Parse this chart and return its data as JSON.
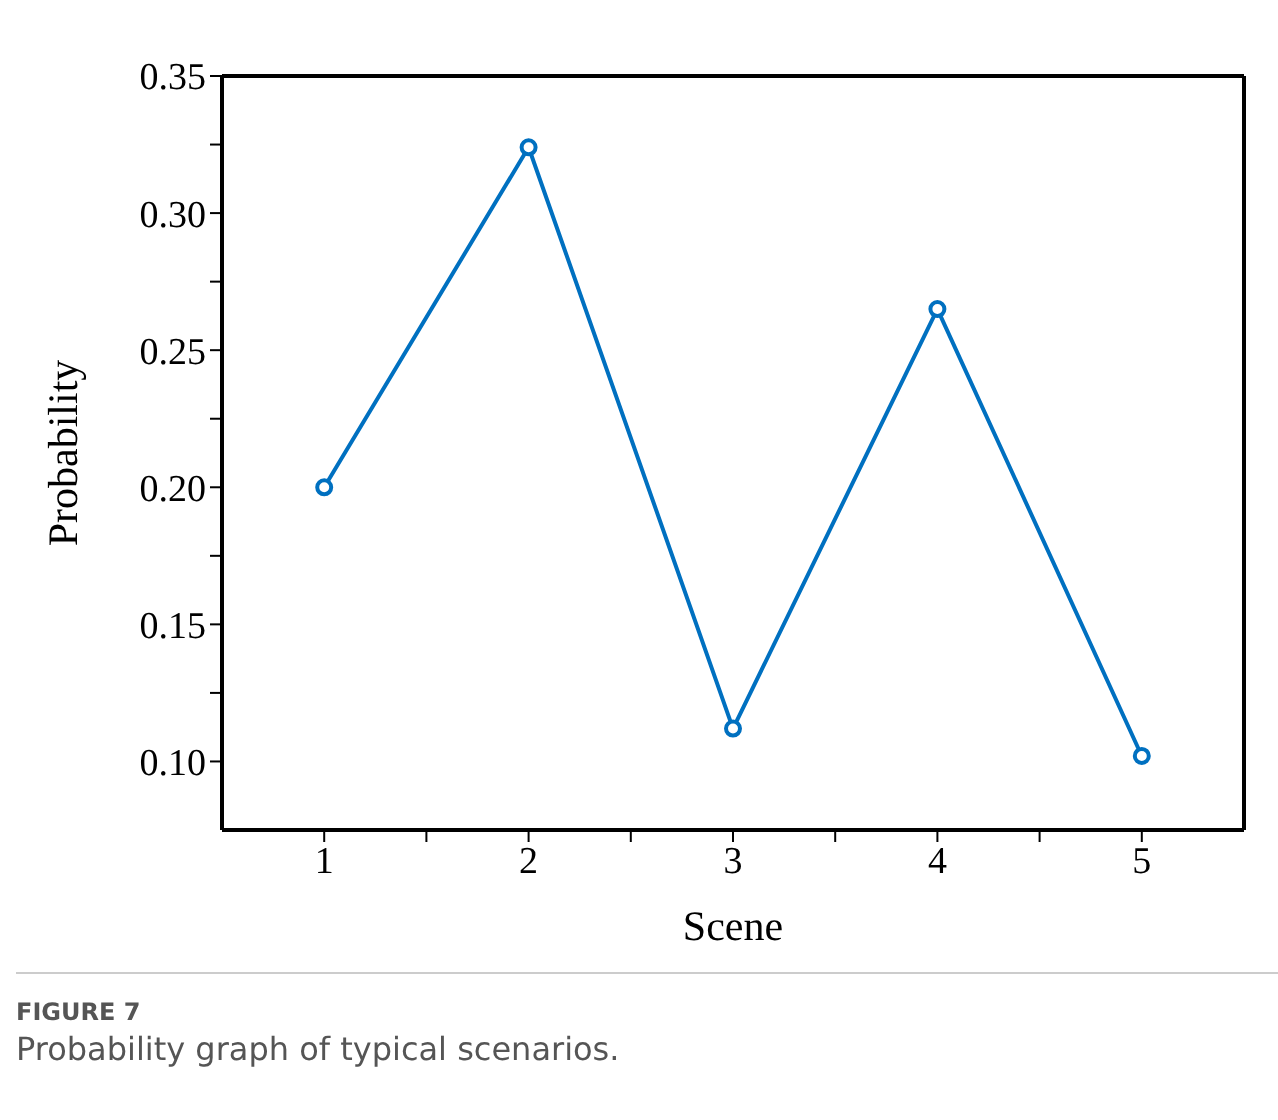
{
  "chart_data": {
    "type": "line",
    "xlabel": "Scene",
    "ylabel": "Probability",
    "x": [
      1,
      2,
      3,
      4,
      5
    ],
    "series": [
      {
        "color": "#0070c0",
        "values": [
          0.2,
          0.324,
          0.112,
          0.265,
          0.102
        ]
      }
    ],
    "xlim": [
      0.5,
      5.5
    ],
    "xticks": [
      1,
      {
        "value": 1.5,
        "label": null
      },
      2,
      {
        "value": 2.5,
        "label": null
      },
      3,
      {
        "value": 3.5,
        "label": null
      },
      4,
      {
        "value": 4.5,
        "label": null
      },
      5
    ],
    "ylim": [
      0.075,
      0.35
    ],
    "yticks": [
      {
        "value": 0.1,
        "label": "0.10"
      },
      {
        "value": 0.125,
        "label": null
      },
      0.15,
      {
        "value": 0.175,
        "label": null
      },
      {
        "value": 0.2,
        "label": "0.20"
      },
      {
        "value": 0.225,
        "label": null
      },
      0.25,
      {
        "value": 0.275,
        "label": null
      },
      {
        "value": 0.3,
        "label": "0.30"
      },
      {
        "value": 0.325,
        "label": null
      },
      0.35
    ],
    "marker": "circle",
    "line_style": "solid",
    "grid": false,
    "legend": false,
    "annotations": [
      "FIGURE 7",
      "Probability graph of typical scenarios."
    ]
  }
}
